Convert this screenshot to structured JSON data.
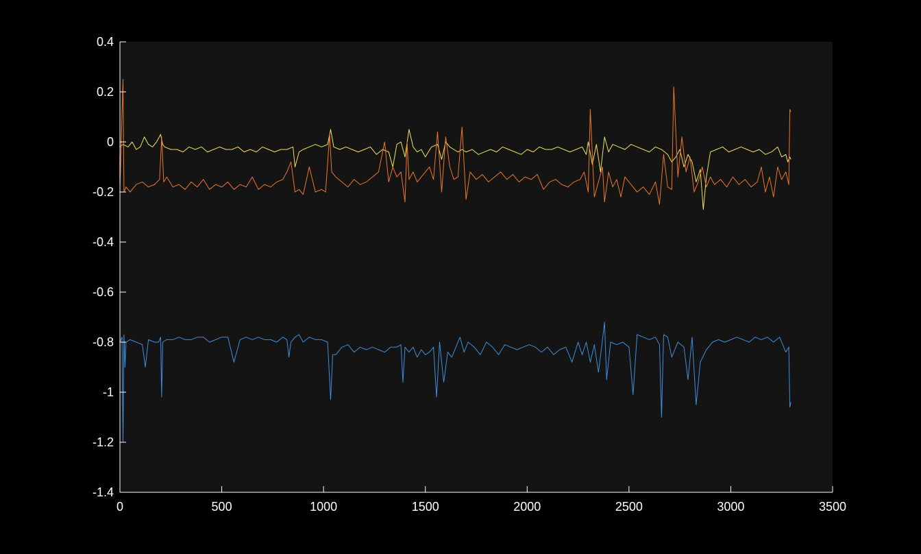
{
  "colors": {
    "figure_background": "#000000",
    "axes_background": "#141414",
    "axis_line": "#ffffff",
    "tick_text": "#ffffff"
  },
  "chart_data": {
    "type": "line",
    "title": "",
    "xlabel": "",
    "ylabel": "",
    "xlim": [
      0,
      3500
    ],
    "ylim": [
      -1.4,
      0.4
    ],
    "x_ticks": [
      0,
      500,
      1000,
      1500,
      2000,
      2500,
      3000,
      3500
    ],
    "x_tick_labels": [
      "0",
      "500",
      "1000",
      "1500",
      "2000",
      "2500",
      "3000",
      "3500"
    ],
    "y_ticks": [
      0.4,
      0.2,
      0,
      -0.2,
      -0.4,
      -0.6,
      -0.8,
      -1,
      -1.2,
      -1.4
    ],
    "y_tick_labels": [
      "0.4",
      "0.2",
      "0",
      "-0.2",
      "-0.4",
      "-0.6",
      "-0.8",
      "-1",
      "-1.2",
      "-1.4"
    ],
    "grid": false,
    "legend": "none",
    "series": [
      {
        "color": "#f2e35c",
        "x": [
          0,
          15,
          40,
          60,
          80,
          100,
          120,
          140,
          160,
          180,
          200,
          210,
          220,
          250,
          280,
          310,
          340,
          370,
          400,
          430,
          460,
          490,
          520,
          550,
          580,
          610,
          640,
          670,
          700,
          730,
          760,
          790,
          820,
          850,
          860,
          880,
          900,
          930,
          960,
          990,
          1020,
          1035,
          1050,
          1080,
          1110,
          1140,
          1170,
          1200,
          1230,
          1260,
          1290,
          1320,
          1340,
          1360,
          1380,
          1400,
          1420,
          1440,
          1460,
          1480,
          1500,
          1530,
          1560,
          1580,
          1600,
          1620,
          1640,
          1660,
          1680,
          1700,
          1730,
          1760,
          1790,
          1820,
          1850,
          1880,
          1910,
          1940,
          1970,
          2000,
          2030,
          2060,
          2090,
          2120,
          2150,
          2180,
          2210,
          2240,
          2270,
          2290,
          2300,
          2320,
          2340,
          2360,
          2380,
          2400,
          2420,
          2450,
          2480,
          2510,
          2540,
          2570,
          2600,
          2630,
          2660,
          2690,
          2710,
          2730,
          2750,
          2770,
          2790,
          2810,
          2830,
          2850,
          2865,
          2880,
          2900,
          2930,
          2960,
          2990,
          3020,
          3050,
          3080,
          3110,
          3140,
          3170,
          3200,
          3230,
          3250,
          3270,
          3280,
          3290,
          3295
        ],
        "y": [
          -0.02,
          -0.01,
          -0.02,
          0.0,
          -0.03,
          -0.02,
          0.02,
          -0.01,
          -0.02,
          0.0,
          0.03,
          -0.01,
          -0.02,
          -0.03,
          -0.03,
          -0.04,
          -0.02,
          -0.03,
          -0.02,
          -0.04,
          -0.03,
          -0.02,
          -0.03,
          -0.03,
          -0.02,
          -0.04,
          -0.03,
          -0.04,
          -0.02,
          -0.03,
          -0.04,
          -0.03,
          -0.03,
          -0.02,
          -0.1,
          -0.04,
          -0.03,
          -0.02,
          -0.01,
          -0.02,
          -0.01,
          0.05,
          -0.02,
          -0.03,
          -0.02,
          -0.03,
          -0.04,
          -0.03,
          -0.02,
          -0.05,
          -0.03,
          -0.04,
          -0.1,
          -0.01,
          0.0,
          -0.06,
          0.05,
          -0.02,
          -0.04,
          -0.03,
          -0.06,
          -0.02,
          -0.01,
          -0.07,
          0.0,
          -0.02,
          -0.03,
          -0.04,
          -0.03,
          -0.04,
          -0.03,
          -0.05,
          -0.04,
          -0.03,
          -0.04,
          -0.02,
          -0.03,
          -0.04,
          -0.05,
          -0.03,
          -0.04,
          -0.02,
          -0.03,
          -0.03,
          -0.02,
          -0.03,
          -0.04,
          -0.03,
          -0.02,
          -0.05,
          0.0,
          -0.09,
          -0.01,
          -0.12,
          0.02,
          -0.04,
          -0.01,
          -0.02,
          -0.03,
          -0.01,
          -0.02,
          -0.03,
          -0.04,
          -0.02,
          -0.03,
          -0.05,
          -0.08,
          -0.06,
          -0.03,
          -0.1,
          -0.05,
          -0.08,
          -0.16,
          -0.11,
          -0.27,
          -0.14,
          -0.04,
          -0.03,
          -0.02,
          -0.04,
          -0.03,
          -0.02,
          -0.03,
          -0.04,
          -0.03,
          -0.05,
          -0.04,
          -0.02,
          -0.06,
          -0.05,
          -0.08,
          -0.06,
          -0.07
        ]
      },
      {
        "color": "#f0762a",
        "x": [
          0,
          15,
          20,
          30,
          50,
          80,
          110,
          140,
          170,
          195,
          205,
          215,
          230,
          260,
          290,
          320,
          350,
          380,
          410,
          440,
          470,
          500,
          530,
          560,
          590,
          620,
          650,
          680,
          710,
          740,
          770,
          800,
          820,
          840,
          860,
          880,
          900,
          930,
          960,
          990,
          1010,
          1030,
          1040,
          1060,
          1090,
          1120,
          1150,
          1180,
          1210,
          1240,
          1270,
          1300,
          1320,
          1340,
          1360,
          1380,
          1400,
          1410,
          1420,
          1440,
          1460,
          1480,
          1500,
          1520,
          1540,
          1560,
          1580,
          1600,
          1620,
          1640,
          1660,
          1680,
          1700,
          1720,
          1750,
          1780,
          1810,
          1840,
          1870,
          1900,
          1930,
          1960,
          1990,
          2020,
          2050,
          2080,
          2110,
          2140,
          2170,
          2200,
          2230,
          2260,
          2280,
          2300,
          2310,
          2330,
          2350,
          2370,
          2380,
          2400,
          2420,
          2440,
          2460,
          2480,
          2510,
          2540,
          2570,
          2600,
          2630,
          2650,
          2670,
          2690,
          2710,
          2720,
          2740,
          2760,
          2780,
          2800,
          2820,
          2840,
          2860,
          2880,
          2900,
          2920,
          2950,
          2980,
          3010,
          3040,
          3070,
          3100,
          3130,
          3150,
          3170,
          3190,
          3210,
          3230,
          3250,
          3270,
          3285,
          3290,
          3295
        ],
        "y": [
          -0.18,
          0.25,
          -0.2,
          -0.18,
          -0.2,
          -0.17,
          -0.16,
          -0.18,
          -0.17,
          -0.15,
          0.02,
          -0.16,
          -0.14,
          -0.18,
          -0.17,
          -0.19,
          -0.16,
          -0.18,
          -0.15,
          -0.19,
          -0.17,
          -0.18,
          -0.16,
          -0.19,
          -0.17,
          -0.18,
          -0.14,
          -0.19,
          -0.17,
          -0.18,
          -0.16,
          -0.15,
          -0.12,
          -0.08,
          -0.2,
          -0.19,
          -0.21,
          -0.1,
          -0.2,
          -0.19,
          -0.2,
          0.03,
          -0.12,
          -0.14,
          -0.16,
          -0.18,
          -0.15,
          -0.17,
          -0.16,
          -0.14,
          -0.12,
          0.0,
          -0.16,
          -0.1,
          -0.14,
          -0.12,
          -0.24,
          0.0,
          -0.15,
          -0.12,
          -0.16,
          -0.14,
          -0.12,
          -0.1,
          -0.15,
          0.04,
          -0.2,
          0.02,
          -0.1,
          -0.15,
          -0.14,
          0.06,
          -0.23,
          -0.12,
          -0.15,
          -0.13,
          -0.16,
          -0.14,
          -0.12,
          -0.15,
          -0.13,
          -0.16,
          -0.14,
          -0.15,
          -0.13,
          -0.19,
          -0.16,
          -0.15,
          -0.17,
          -0.18,
          -0.16,
          -0.15,
          -0.12,
          -0.2,
          0.13,
          -0.22,
          -0.16,
          -0.1,
          -0.24,
          -0.12,
          -0.18,
          -0.15,
          -0.22,
          -0.14,
          -0.17,
          -0.2,
          -0.18,
          -0.21,
          -0.16,
          -0.25,
          -0.05,
          -0.18,
          -0.19,
          0.22,
          -0.14,
          0.02,
          -0.12,
          -0.06,
          -0.2,
          -0.16,
          -0.1,
          -0.18,
          -0.14,
          -0.17,
          -0.15,
          -0.18,
          -0.14,
          -0.17,
          -0.15,
          -0.18,
          -0.16,
          -0.1,
          -0.2,
          -0.14,
          -0.22,
          -0.1,
          -0.15,
          -0.12,
          -0.17,
          0.13,
          0.12
        ]
      },
      {
        "color": "#3d8fdc",
        "x": [
          0,
          10,
          15,
          20,
          25,
          30,
          50,
          80,
          110,
          125,
          140,
          170,
          190,
          200,
          205,
          210,
          230,
          260,
          290,
          320,
          350,
          380,
          410,
          440,
          470,
          500,
          530,
          560,
          590,
          620,
          650,
          680,
          710,
          740,
          770,
          800,
          820,
          830,
          840,
          860,
          880,
          900,
          930,
          960,
          990,
          1020,
          1035,
          1045,
          1060,
          1090,
          1120,
          1150,
          1180,
          1210,
          1240,
          1270,
          1300,
          1330,
          1360,
          1380,
          1390,
          1400,
          1420,
          1440,
          1460,
          1480,
          1500,
          1520,
          1540,
          1555,
          1570,
          1590,
          1610,
          1630,
          1650,
          1670,
          1690,
          1710,
          1740,
          1770,
          1800,
          1830,
          1860,
          1890,
          1920,
          1950,
          1980,
          2010,
          2040,
          2070,
          2100,
          2130,
          2160,
          2190,
          2220,
          2250,
          2270,
          2290,
          2310,
          2330,
          2350,
          2370,
          2380,
          2390,
          2410,
          2440,
          2470,
          2500,
          2520,
          2540,
          2570,
          2600,
          2630,
          2650,
          2660,
          2670,
          2690,
          2710,
          2740,
          2770,
          2790,
          2810,
          2830,
          2850,
          2880,
          2910,
          2940,
          2970,
          3000,
          3030,
          3060,
          3090,
          3120,
          3150,
          3180,
          3210,
          3240,
          3270,
          3285,
          3290,
          3295
        ],
        "y": [
          -0.8,
          -0.78,
          -1.2,
          -0.77,
          -0.9,
          -0.8,
          -0.79,
          -0.8,
          -0.81,
          -0.9,
          -0.79,
          -0.8,
          -0.8,
          -0.78,
          -1.02,
          -0.8,
          -0.79,
          -0.79,
          -0.78,
          -0.79,
          -0.79,
          -0.78,
          -0.78,
          -0.8,
          -0.79,
          -0.78,
          -0.78,
          -0.88,
          -0.79,
          -0.78,
          -0.79,
          -0.78,
          -0.79,
          -0.79,
          -0.8,
          -0.78,
          -0.79,
          -0.86,
          -0.8,
          -0.78,
          -0.77,
          -0.8,
          -0.78,
          -0.79,
          -0.79,
          -0.8,
          -1.03,
          -0.85,
          -0.85,
          -0.82,
          -0.81,
          -0.84,
          -0.82,
          -0.83,
          -0.82,
          -0.83,
          -0.84,
          -0.82,
          -0.82,
          -0.81,
          -0.96,
          -0.82,
          -0.84,
          -0.82,
          -0.86,
          -0.83,
          -0.85,
          -0.84,
          -0.82,
          -1.02,
          -0.8,
          -0.96,
          -0.84,
          -0.86,
          -0.82,
          -0.78,
          -0.84,
          -0.8,
          -0.82,
          -0.85,
          -0.8,
          -0.82,
          -0.85,
          -0.81,
          -0.82,
          -0.83,
          -0.82,
          -0.81,
          -0.82,
          -0.84,
          -0.82,
          -0.85,
          -0.83,
          -0.82,
          -0.88,
          -0.8,
          -0.85,
          -0.8,
          -0.88,
          -0.81,
          -0.92,
          -0.79,
          -0.72,
          -0.95,
          -0.8,
          -0.81,
          -0.8,
          -0.82,
          -1.01,
          -0.77,
          -0.78,
          -0.79,
          -0.78,
          -0.81,
          -1.1,
          -0.77,
          -0.78,
          -0.86,
          -0.8,
          -0.82,
          -0.95,
          -0.78,
          -1.05,
          -0.88,
          -0.83,
          -0.8,
          -0.79,
          -0.8,
          -0.79,
          -0.78,
          -0.79,
          -0.8,
          -0.78,
          -0.79,
          -0.78,
          -0.8,
          -0.78,
          -0.84,
          -0.82,
          -1.06,
          -1.04
        ]
      }
    ]
  }
}
